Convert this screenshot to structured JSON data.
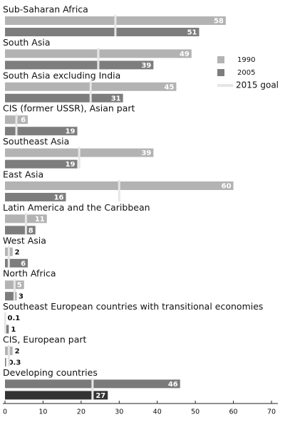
{
  "chart_data": {
    "type": "hbar",
    "categories": [
      "Sub-Saharan Africa",
      "South Asia",
      "South Asia excluding India",
      "CIS (former USSR), Asian part",
      "Southeast Asia",
      "East Asia",
      "Latin America and the Caribbean",
      "West Asia",
      "North Africa",
      "Southeast European countries with transitional economies",
      "CIS, European part",
      "Developing countries"
    ],
    "series": [
      {
        "name": "1990",
        "color": "#b3b3b3",
        "highlight_color": "#7a7a7a",
        "values": [
          58,
          49,
          45,
          6,
          39,
          60,
          11,
          2,
          5,
          0.1,
          2,
          46
        ]
      },
      {
        "name": "2005",
        "color": "#7d7d7d",
        "highlight_color": "#333333",
        "values": [
          51,
          39,
          31,
          19,
          19,
          16,
          8,
          6,
          3,
          1,
          0.3,
          27
        ]
      },
      {
        "name": "2015 goal",
        "color": "#e6e6e6",
        "values": [
          29,
          24.5,
          22.5,
          3,
          19.5,
          30,
          5.5,
          1,
          2.5,
          0.05,
          1,
          23
        ]
      }
    ],
    "highlight_category": "Developing countries",
    "xlim": [
      0,
      70
    ],
    "xticks": [
      0,
      10,
      20,
      30,
      40,
      50,
      60,
      70
    ]
  }
}
